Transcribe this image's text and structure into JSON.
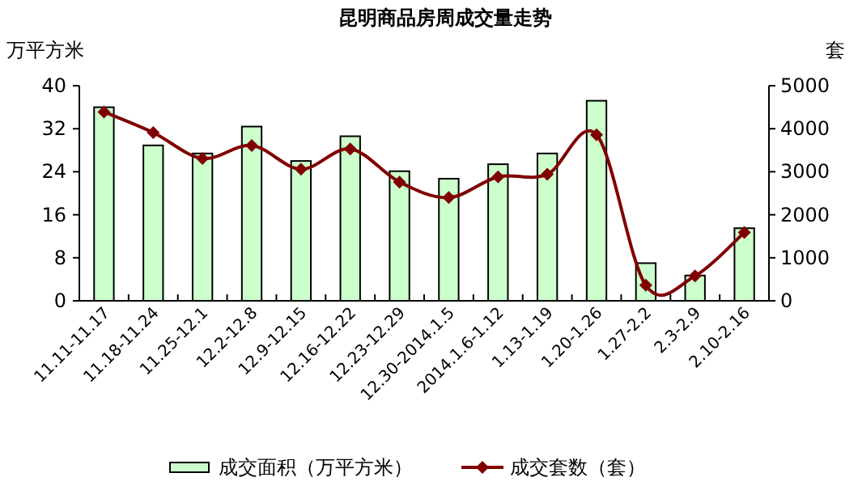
{
  "chart_data": {
    "type": "bar",
    "title": "昆明商品房周成交量走势",
    "ylabel": "万平方米",
    "y2label": "套",
    "categories": [
      "11.11-11.17",
      "11.18-11.24",
      "11.25-12.1",
      "12.2-12.8",
      "12.9-12.15",
      "12.16-12.22",
      "12.23-12.29",
      "12.30-2014.1.5",
      "2014.1.6-1.12",
      "1.13-1.19",
      "1.20-1.26",
      "1.27-2.2",
      "2.3-2.9",
      "2.10-2.16"
    ],
    "series": [
      {
        "name": "成交面积（万平方米）",
        "color": "#ccffcc",
        "values": [
          36.0,
          28.9,
          27.4,
          32.4,
          26.0,
          30.6,
          24.1,
          22.7,
          25.4,
          27.4,
          37.2,
          7.0,
          4.7,
          13.5
        ]
      },
      {
        "name": "成交套数（套）",
        "type": "line",
        "axis": "y2",
        "color": "#800000",
        "marker": "diamond",
        "values": [
          4390,
          3910,
          3310,
          3610,
          3060,
          3530,
          2760,
          2400,
          2880,
          2940,
          3860,
          360,
          580,
          1590
        ]
      }
    ],
    "ylim": [
      0,
      40
    ],
    "yticks": [
      0,
      8,
      16,
      24,
      32,
      40
    ],
    "y2lim": [
      0,
      5000
    ],
    "y2ticks": [
      0,
      1000,
      2000,
      3000,
      4000,
      5000
    ],
    "grid": false,
    "legend": "bottom"
  }
}
